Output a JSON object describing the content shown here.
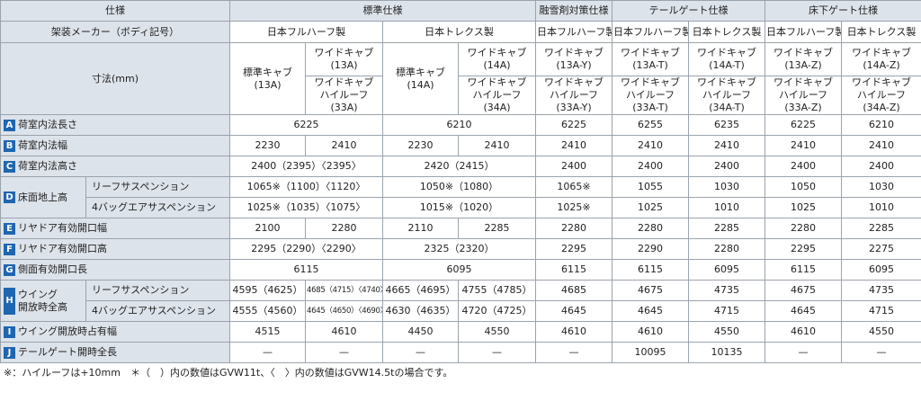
{
  "header": {
    "spec": "仕様",
    "standard": "標準仕様",
    "snow": "融雪剤対策仕様",
    "tailgate": "テールゲート仕様",
    "floorgate": "床下ゲート仕様",
    "maker_label": "架装メーカー（ボディ記号）",
    "nf1": "日本フルハーフ製",
    "nt1": "日本トレクス製",
    "nf2": "日本フルハーフ製",
    "nf3": "日本フルハーフ製",
    "nt3": "日本トレクス製",
    "nf4": "日本フルハーフ製",
    "nt4": "日本トレクス製",
    "dim_label": "寸法(mm)",
    "std13": "標準キャブ\n(13A)",
    "wide13a": "ワイドキャブ\n(13A)",
    "wide33a": "ワイドキャブ\nハイルーフ\n(33A)",
    "std14": "標準キャブ\n(14A)",
    "wide14a": "ワイドキャブ\n(14A)",
    "wide34a": "ワイドキャブ\nハイルーフ\n(34A)",
    "w13y": "ワイドキャブ\n(13A-Y)",
    "wh33y": "ワイドキャブ\nハイルーフ\n(33A-Y)",
    "w13t": "ワイドキャブ\n(13A-T)",
    "wh33t": "ワイドキャブ\nハイルーフ\n(33A-T)",
    "w14t": "ワイドキャブ\n(14A-T)",
    "wh34t": "ワイドキャブ\nハイルーフ\n(34A-T)",
    "w13z": "ワイドキャブ\n(13A-Z)",
    "wh33z": "ワイドキャブ\nハイルーフ\n(33A-Z)",
    "w14z": "ワイドキャブ\n(14A-Z)",
    "wh34z": "ワイドキャブ\nハイルーフ\n(34A-Z)"
  },
  "rows": {
    "A": {
      "badge": "A",
      "label": "荷室内法長さ",
      "c1": "6225",
      "c2": "6210",
      "c3": "6225",
      "c4": "6255",
      "c5": "6235",
      "c6": "6225",
      "c7": "6210"
    },
    "B": {
      "badge": "B",
      "label": "荷室内法幅",
      "c1": "2230",
      "c2": "2410",
      "c3": "2230",
      "c4": "2410",
      "c5": "2410",
      "c6": "2410",
      "c7": "2410",
      "c8": "2410",
      "c9": "2410"
    },
    "C": {
      "badge": "C",
      "label": "荷室内法高さ",
      "c1": "2400（2395）〈2395〉",
      "c2": "2420（2415）",
      "c3": "2400",
      "c4": "2400",
      "c5": "2400",
      "c6": "2400",
      "c7": "2400"
    },
    "D": {
      "badge": "D",
      "label": "床面地上高",
      "sub1": "リーフサスペンション",
      "sub2": "4バッグエアサスペンション",
      "r1": {
        "c1": "1065※（1100）〈1120〉",
        "c2": "1050※（1080）",
        "c3": "1065※",
        "c4": "1055",
        "c5": "1030",
        "c6": "1050",
        "c7": "1030"
      },
      "r2": {
        "c1": "1025※（1035）〈1075〉",
        "c2": "1015※（1020）",
        "c3": "1025※",
        "c4": "1025",
        "c5": "1010",
        "c6": "1025",
        "c7": "1010"
      }
    },
    "E": {
      "badge": "E",
      "label": "リヤドア有効開口幅",
      "c1": "2100",
      "c2": "2280",
      "c3": "2110",
      "c4": "2285",
      "c5": "2280",
      "c6": "2280",
      "c7": "2285",
      "c8": "2280",
      "c9": "2285"
    },
    "F": {
      "badge": "F",
      "label": "リヤドア有効開口高",
      "c1": "2295（2290）〈2290〉",
      "c2": "2325（2320）",
      "c3": "2295",
      "c4": "2290",
      "c5": "2280",
      "c6": "2295",
      "c7": "2275"
    },
    "G": {
      "badge": "G",
      "label": "側面有効開口長",
      "c1": "6115",
      "c2": "6095",
      "c3": "6115",
      "c4": "6115",
      "c5": "6095",
      "c6": "6115",
      "c7": "6095"
    },
    "H": {
      "badge": "H",
      "label": "ウイング\n開放時全高",
      "sub1": "リーフサスペンション",
      "sub2": "4バッグエアサスペンション",
      "r1": {
        "c1": "4595（4625）",
        "c2": "4685（4715）〈4740〉",
        "c3": "4665（4695）",
        "c4": "4755（4785）",
        "c5": "4685",
        "c6": "4675",
        "c7": "4735",
        "c8": "4675",
        "c9": "4735"
      },
      "r2": {
        "c1": "4555（4560）",
        "c2": "4645（4650）〈4690〉",
        "c3": "4630（4635）",
        "c4": "4720（4725）",
        "c5": "4645",
        "c6": "4645",
        "c7": "4715",
        "c8": "4645",
        "c9": "4715"
      }
    },
    "I": {
      "badge": "I",
      "label": "ウイング開放時占有幅",
      "c1": "4515",
      "c2": "4610",
      "c3": "4450",
      "c4": "4550",
      "c5": "4610",
      "c6": "4610",
      "c7": "4550",
      "c8": "4610",
      "c9": "4550"
    },
    "J": {
      "badge": "J",
      "label": "テールゲート開時全長",
      "c1": "—",
      "c2": "—",
      "c3": "—",
      "c4": "—",
      "c5": "—",
      "c6": "10095",
      "c7": "10135",
      "c8": "—",
      "c9": "—"
    }
  },
  "footnote": "※：ハイルーフは+10mm　＊（　）内の数値はGVW11t、〈　〉内の数値はGVW14.5tの場合です。"
}
